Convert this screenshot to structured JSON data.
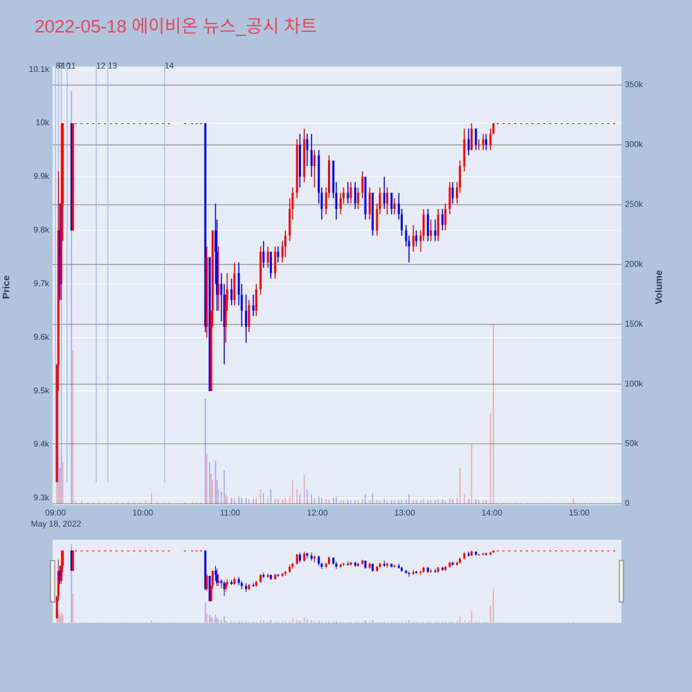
{
  "chart_data": {
    "type": "candlestick",
    "title": "2022-05-18 에이비온 뉴스_공시 차트",
    "y_label": "Price",
    "y2_label": "Volume",
    "increasing_color": "#ff0000",
    "decreasing_color": "#0000ff",
    "xlim": [
      "08:58",
      "15:29"
    ],
    "xticks": [
      "09:00",
      "10:00",
      "11:00",
      "12:00",
      "13:00",
      "14:00",
      "15:00"
    ],
    "xtick_sublabel": "May 18, 2022",
    "ylim": [
      9287,
      10106
    ],
    "yticks": [
      {
        "value": 9300,
        "label": "9.3k"
      },
      {
        "value": 9400,
        "label": "9.4k"
      },
      {
        "value": 9500,
        "label": "9.5k"
      },
      {
        "value": 9600,
        "label": "9.6k"
      },
      {
        "value": 9700,
        "label": "9.7k"
      },
      {
        "value": 9800,
        "label": "9.8k"
      },
      {
        "value": 9900,
        "label": "9.9k"
      },
      {
        "value": 10000,
        "label": "10k"
      },
      {
        "value": 10100,
        "label": "10.1k"
      }
    ],
    "y2lim": [
      -1160,
      365600
    ],
    "y2ticks": [
      0,
      {
        "value": 50000,
        "label": "50k"
      },
      {
        "value": 100000,
        "label": "100k"
      },
      {
        "value": 150000,
        "label": "150k"
      },
      {
        "value": 200000,
        "label": "200k"
      },
      {
        "value": 250000,
        "label": "250k"
      },
      {
        "value": 300000,
        "label": "300k"
      },
      {
        "value": 350000,
        "label": "350k"
      }
    ],
    "news": [
      {
        "time": "09:00",
        "label": "8"
      },
      {
        "time": "09:02",
        "label": "9"
      },
      {
        "time": "09:04",
        "label": "10"
      },
      {
        "time": "09:08",
        "label": "11"
      },
      {
        "time": "09:28",
        "label": "12"
      },
      {
        "time": "09:36",
        "label": "13"
      },
      {
        "time": "10:15",
        "label": "14"
      }
    ],
    "x": [
      "09:01",
      "09:02",
      "09:03",
      "09:04",
      "09:05",
      "09:11",
      "09:12",
      "09:14",
      "09:18",
      "09:22",
      "09:26",
      "09:30",
      "09:34",
      "09:38",
      "09:42",
      "09:46",
      "09:50",
      "09:54",
      "09:58",
      "10:02",
      "10:06",
      "10:10",
      "10:14",
      "10:18",
      "10:29",
      "10:34",
      "10:37",
      "10:40",
      "10:43",
      "10:44",
      "10:46",
      "10:47",
      "10:48",
      "10:50",
      "10:51",
      "10:52",
      "10:54",
      "10:56",
      "10:57",
      "10:58",
      "11:01",
      "11:03",
      "11:06",
      "11:08",
      "11:11",
      "11:13",
      "11:16",
      "11:18",
      "11:21",
      "11:23",
      "11:26",
      "11:28",
      "11:31",
      "11:33",
      "11:36",
      "11:38",
      "11:41",
      "11:43",
      "11:46",
      "11:48",
      "11:51",
      "11:53",
      "11:56",
      "11:58",
      "12:01",
      "12:03",
      "12:06",
      "12:08",
      "12:11",
      "12:13",
      "12:16",
      "12:18",
      "12:21",
      "12:23",
      "12:26",
      "12:28",
      "12:31",
      "12:33",
      "12:36",
      "12:38",
      "12:41",
      "12:43",
      "12:46",
      "12:48",
      "12:51",
      "12:53",
      "12:56",
      "12:58",
      "13:01",
      "13:03",
      "13:06",
      "13:08",
      "13:11",
      "13:13",
      "13:16",
      "13:18",
      "13:21",
      "13:23",
      "13:26",
      "13:28",
      "13:31",
      "13:33",
      "13:36",
      "13:38",
      "13:41",
      "13:44",
      "13:46",
      "13:49",
      "13:51",
      "13:54",
      "13:56",
      "13:59",
      "14:01",
      "14:04",
      "14:08",
      "14:12",
      "14:16",
      "14:20",
      "14:24",
      "14:28",
      "14:32",
      "14:36",
      "14:40",
      "14:44",
      "14:48",
      "14:52",
      "14:56",
      "15:00",
      "15:04",
      "15:08",
      "15:12",
      "15:16",
      "15:20",
      "15:24"
    ],
    "open": [
      9330,
      9550,
      9800,
      9700,
      9850,
      10000,
      9800,
      10000,
      10000,
      10000,
      10000,
      10000,
      10000,
      10000,
      10000,
      10000,
      10000,
      10000,
      10000,
      10000,
      10000,
      10000,
      10000,
      10000,
      10000,
      10000,
      10000,
      10000,
      10000,
      9620,
      9750,
      9500,
      9650,
      9800,
      9760,
      9680,
      9700,
      9680,
      9620,
      9670,
      9690,
      9670,
      9720,
      9680,
      9650,
      9620,
      9660,
      9650,
      9690,
      9760,
      9740,
      9760,
      9720,
      9760,
      9750,
      9770,
      9790,
      9840,
      9870,
      9960,
      9900,
      9970,
      9950,
      9920,
      9940,
      9870,
      9840,
      9870,
      9930,
      9870,
      9840,
      9860,
      9870,
      9860,
      9880,
      9850,
      9870,
      9900,
      9830,
      9870,
      9800,
      9840,
      9870,
      9850,
      9870,
      9840,
      9850,
      9830,
      9800,
      9780,
      9770,
      9790,
      9780,
      9790,
      9830,
      9790,
      9800,
      9790,
      9830,
      9810,
      9840,
      9880,
      9860,
      9880,
      9920,
      9970,
      9950,
      9990,
      9960,
      9960,
      9970,
      9960,
      9980,
      10000,
      10000,
      10000,
      10000,
      10000,
      10000,
      10000,
      10000,
      10000,
      10000,
      10000,
      10000,
      10000,
      10000,
      10000,
      10000,
      10000,
      10000,
      10000,
      10000,
      10000
    ],
    "high": [
      9550,
      9910,
      9850,
      10000,
      10000,
      10000,
      10000,
      10000,
      10000,
      10000,
      10000,
      10000,
      10000,
      10000,
      10000,
      10000,
      10000,
      10000,
      10000,
      10000,
      10000,
      10000,
      10000,
      10000,
      10000,
      10000,
      10000,
      10000,
      10000,
      9770,
      9750,
      9650,
      9800,
      9850,
      9820,
      9770,
      9720,
      9700,
      9680,
      9720,
      9710,
      9740,
      9740,
      9700,
      9680,
      9670,
      9680,
      9700,
      9770,
      9780,
      9770,
      9760,
      9770,
      9770,
      9780,
      9800,
      9860,
      9880,
      9970,
      9980,
      9990,
      9980,
      9980,
      9950,
      9950,
      9880,
      9880,
      9940,
      9930,
      9890,
      9870,
      9880,
      9890,
      9890,
      9890,
      9880,
      9910,
      9900,
      9880,
      9870,
      9850,
      9880,
      9900,
      9880,
      9870,
      9860,
      9870,
      9840,
      9810,
      9790,
      9810,
      9800,
      9800,
      9840,
      9840,
      9820,
      9820,
      9840,
      9840,
      9850,
      9890,
      9890,
      9890,
      9930,
      9990,
      9990,
      10000,
      9990,
      9970,
      9980,
      9980,
      9990,
      10000,
      10000,
      10000,
      10000,
      10000,
      10000,
      10000,
      10000,
      10000,
      10000,
      10000,
      10000,
      10000,
      10000,
      10000,
      10000,
      10000,
      10000,
      10000,
      10000,
      10000,
      10000
    ],
    "low": [
      9330,
      9500,
      9670,
      9670,
      9780,
      9800,
      9800,
      10000,
      10000,
      10000,
      10000,
      10000,
      10000,
      10000,
      10000,
      10000,
      10000,
      10000,
      10000,
      10000,
      10000,
      10000,
      10000,
      10000,
      10000,
      10000,
      10000,
      10000,
      9610,
      9600,
      9500,
      9500,
      9620,
      9700,
      9650,
      9650,
      9630,
      9550,
      9590,
      9650,
      9660,
      9660,
      9660,
      9620,
      9590,
      9610,
      9640,
      9640,
      9680,
      9730,
      9730,
      9710,
      9710,
      9740,
      9740,
      9750,
      9780,
      9820,
      9860,
      9880,
      9890,
      9920,
      9900,
      9880,
      9850,
      9820,
      9830,
      9860,
      9860,
      9820,
      9830,
      9850,
      9850,
      9850,
      9840,
      9840,
      9860,
      9820,
      9820,
      9790,
      9790,
      9830,
      9840,
      9830,
      9830,
      9830,
      9820,
      9790,
      9770,
      9740,
      9760,
      9770,
      9760,
      9780,
      9780,
      9780,
      9780,
      9780,
      9800,
      9800,
      9830,
      9850,
      9850,
      9870,
      9910,
      9940,
      9950,
      9950,
      9950,
      9950,
      9950,
      9950,
      9980,
      10000,
      10000,
      10000,
      10000,
      10000,
      10000,
      10000,
      10000,
      10000,
      10000,
      10000,
      10000,
      10000,
      10000,
      10000,
      10000,
      10000,
      10000,
      10000,
      10000,
      10000
    ],
    "close": [
      9550,
      9800,
      9700,
      9850,
      10000,
      9800,
      10000,
      10000,
      10000,
      10000,
      10000,
      10000,
      10000,
      10000,
      10000,
      10000,
      10000,
      10000,
      10000,
      10000,
      10000,
      10000,
      10000,
      10000,
      10000,
      10000,
      10000,
      10000,
      9620,
      9750,
      9500,
      9650,
      9800,
      9760,
      9680,
      9700,
      9680,
      9620,
      9670,
      9690,
      9670,
      9720,
      9680,
      9650,
      9620,
      9660,
      9650,
      9690,
      9760,
      9740,
      9760,
      9720,
      9760,
      9750,
      9770,
      9790,
      9840,
      9870,
      9960,
      9900,
      9970,
      9950,
      9920,
      9940,
      9870,
      9840,
      9870,
      9930,
      9870,
      9840,
      9860,
      9870,
      9860,
      9880,
      9850,
      9870,
      9900,
      9830,
      9870,
      9800,
      9840,
      9870,
      9850,
      9870,
      9840,
      9850,
      9830,
      9800,
      9780,
      9770,
      9790,
      9780,
      9790,
      9830,
      9790,
      9800,
      9790,
      9830,
      9810,
      9840,
      9880,
      9860,
      9880,
      9920,
      9970,
      9950,
      9990,
      9960,
      9960,
      9970,
      9960,
      9980,
      10000,
      10000,
      10000,
      10000,
      10000,
      10000,
      10000,
      10000,
      10000,
      10000,
      10000,
      10000,
      10000,
      10000,
      10000,
      10000,
      10000,
      10000,
      10000,
      10000,
      10000,
      10000
    ],
    "volume": [
      18000,
      40000,
      30000,
      45000,
      35000,
      345000,
      128000,
      2000,
      2000,
      1000,
      1000,
      1000,
      1000,
      1000,
      1000,
      1000,
      1000,
      1000,
      1000,
      3000,
      9000,
      1000,
      1000,
      1000,
      1000,
      1000,
      1000,
      1000,
      88000,
      42000,
      35000,
      25000,
      20000,
      36000,
      20000,
      12000,
      10000,
      28000,
      8000,
      6000,
      5000,
      5000,
      6000,
      5000,
      5000,
      4000,
      4000,
      5000,
      12000,
      9000,
      6000,
      12000,
      5000,
      4000,
      4000,
      5000,
      6000,
      20000,
      12000,
      8000,
      24000,
      12000,
      8000,
      5000,
      6000,
      5000,
      4000,
      4000,
      5000,
      6000,
      3000,
      3000,
      3000,
      3000,
      3000,
      3000,
      4000,
      8000,
      3000,
      9000,
      3000,
      3000,
      4000,
      3000,
      3000,
      3000,
      3000,
      3000,
      3000,
      8000,
      3000,
      3000,
      3000,
      4000,
      3000,
      3000,
      3000,
      4000,
      4000,
      3000,
      5000,
      4000,
      5000,
      30000,
      8000,
      4000,
      50000,
      4000,
      3000,
      3000,
      3000,
      76000,
      150000,
      500,
      500,
      500,
      500,
      500,
      500,
      500,
      500,
      500,
      500,
      500,
      500,
      500,
      5000,
      500,
      500,
      500,
      500,
      500,
      500,
      500
    ]
  }
}
